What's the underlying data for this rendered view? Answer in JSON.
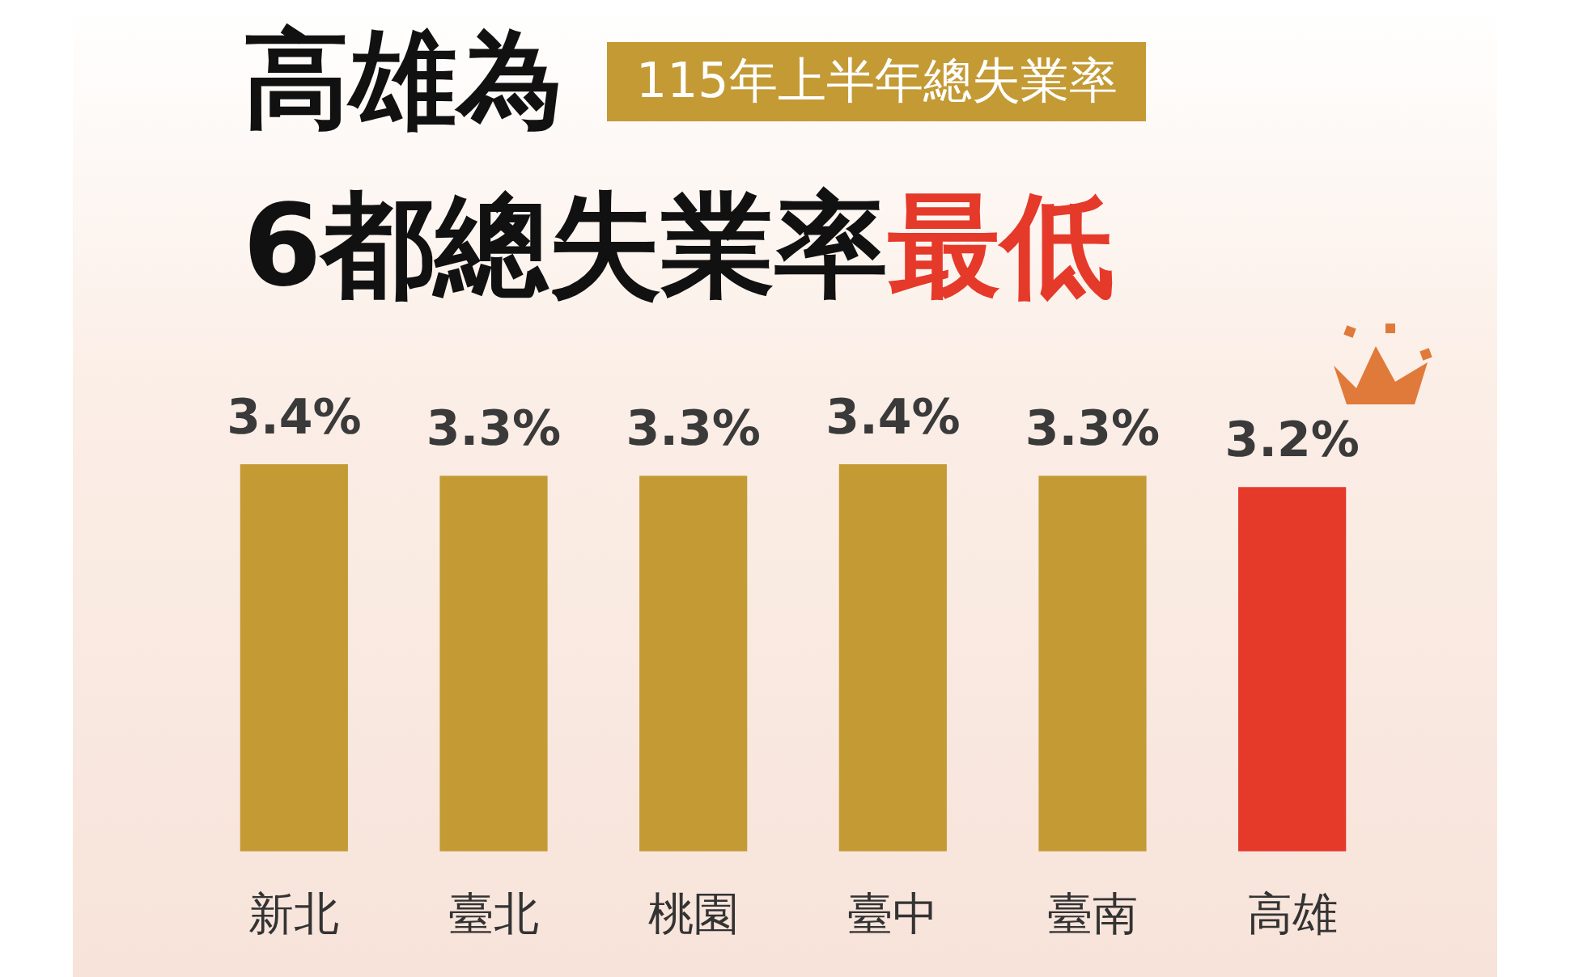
{
  "chart_data": {
    "type": "bar",
    "title": "高雄為 6都總失業率最低",
    "subtitle": "115年上半年總失業率",
    "categories": [
      "新北",
      "臺北",
      "桃園",
      "臺中",
      "臺南",
      "高雄"
    ],
    "values": [
      3.4,
      3.3,
      3.3,
      3.4,
      3.3,
      3.2
    ],
    "colors": [
      "#c49a35",
      "#c49a35",
      "#c49a35",
      "#c49a35",
      "#c49a35",
      "#e5392a"
    ],
    "value_labels": [
      "3.4%",
      "3.3%",
      "3.3%",
      "3.4%",
      "3.3%",
      "3.2%"
    ]
  }
}
